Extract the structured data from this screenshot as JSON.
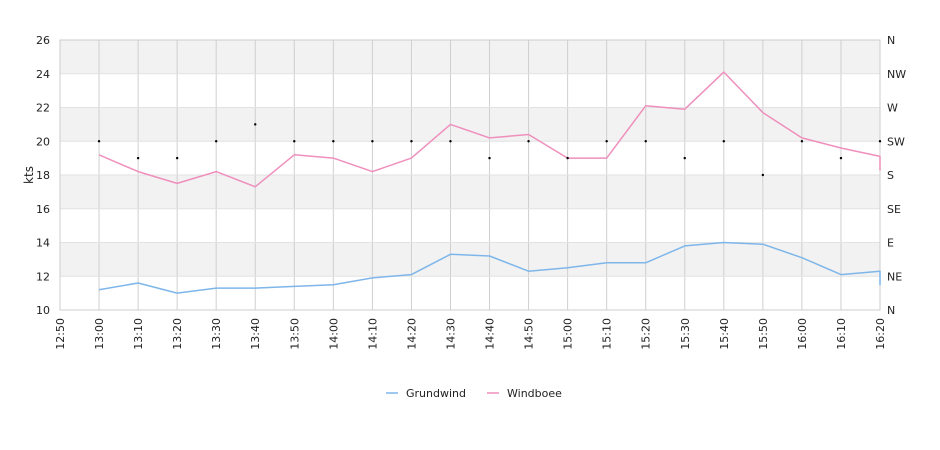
{
  "chart_data": {
    "type": "line",
    "ylabel": "kts",
    "ylim": [
      10,
      26
    ],
    "yticks": [
      "10",
      "12",
      "14",
      "16",
      "18",
      "20",
      "22",
      "24",
      "26"
    ],
    "y2ticks": [
      "N",
      "NE",
      "E",
      "SE",
      "S",
      "SW",
      "W",
      "NW",
      "N"
    ],
    "x_range": [
      "12:50",
      "16:20"
    ],
    "xticks": [
      "12:50",
      "13:00",
      "13:10",
      "13:20",
      "13:30",
      "13:40",
      "13:50",
      "14:00",
      "14:10",
      "14:20",
      "14:30",
      "14:40",
      "14:50",
      "15:00",
      "15:10",
      "15:20",
      "15:30",
      "15:40",
      "15:50",
      "16:00",
      "16:10",
      "16:20"
    ],
    "grid": true,
    "legend_position": "bottom-center",
    "x": [
      "13:00",
      "13:10",
      "13:20",
      "13:30",
      "13:40",
      "13:50",
      "14:00",
      "14:10",
      "14:20",
      "14:30",
      "14:40",
      "14:50",
      "15:00",
      "15:10",
      "15:20",
      "15:30",
      "15:40",
      "15:50",
      "16:00",
      "16:10",
      "16:20"
    ],
    "series": [
      {
        "name": "Grundwind",
        "color": "#7eb6ea",
        "values": [
          11.2,
          11.6,
          11.0,
          11.3,
          11.3,
          11.4,
          11.5,
          11.9,
          12.1,
          13.3,
          13.2,
          12.3,
          12.5,
          12.8,
          12.8,
          13.8,
          14.0,
          13.9,
          13.1,
          12.1,
          12.3
        ]
      },
      {
        "name": "Windboee",
        "color": "#ef8fbc",
        "values": [
          19.2,
          18.2,
          17.5,
          18.2,
          17.3,
          19.2,
          19.0,
          18.2,
          19.0,
          21.0,
          20.2,
          20.4,
          19.0,
          19.0,
          22.1,
          21.9,
          24.1,
          21.7,
          20.2,
          19.6,
          19.1
        ]
      }
    ],
    "direction_markers": {
      "color": "#000000",
      "x": [
        "13:00",
        "13:10",
        "13:20",
        "13:30",
        "13:40",
        "13:50",
        "14:00",
        "14:10",
        "14:20",
        "14:30",
        "14:40",
        "14:50",
        "15:00",
        "15:10",
        "15:20",
        "15:30",
        "15:40",
        "15:50",
        "16:00",
        "16:10",
        "16:20"
      ],
      "values": [
        20,
        19,
        19,
        20,
        21,
        20,
        20,
        20,
        20,
        20,
        19,
        20,
        19,
        20,
        20,
        19,
        20,
        18,
        20,
        19,
        20
      ]
    }
  }
}
